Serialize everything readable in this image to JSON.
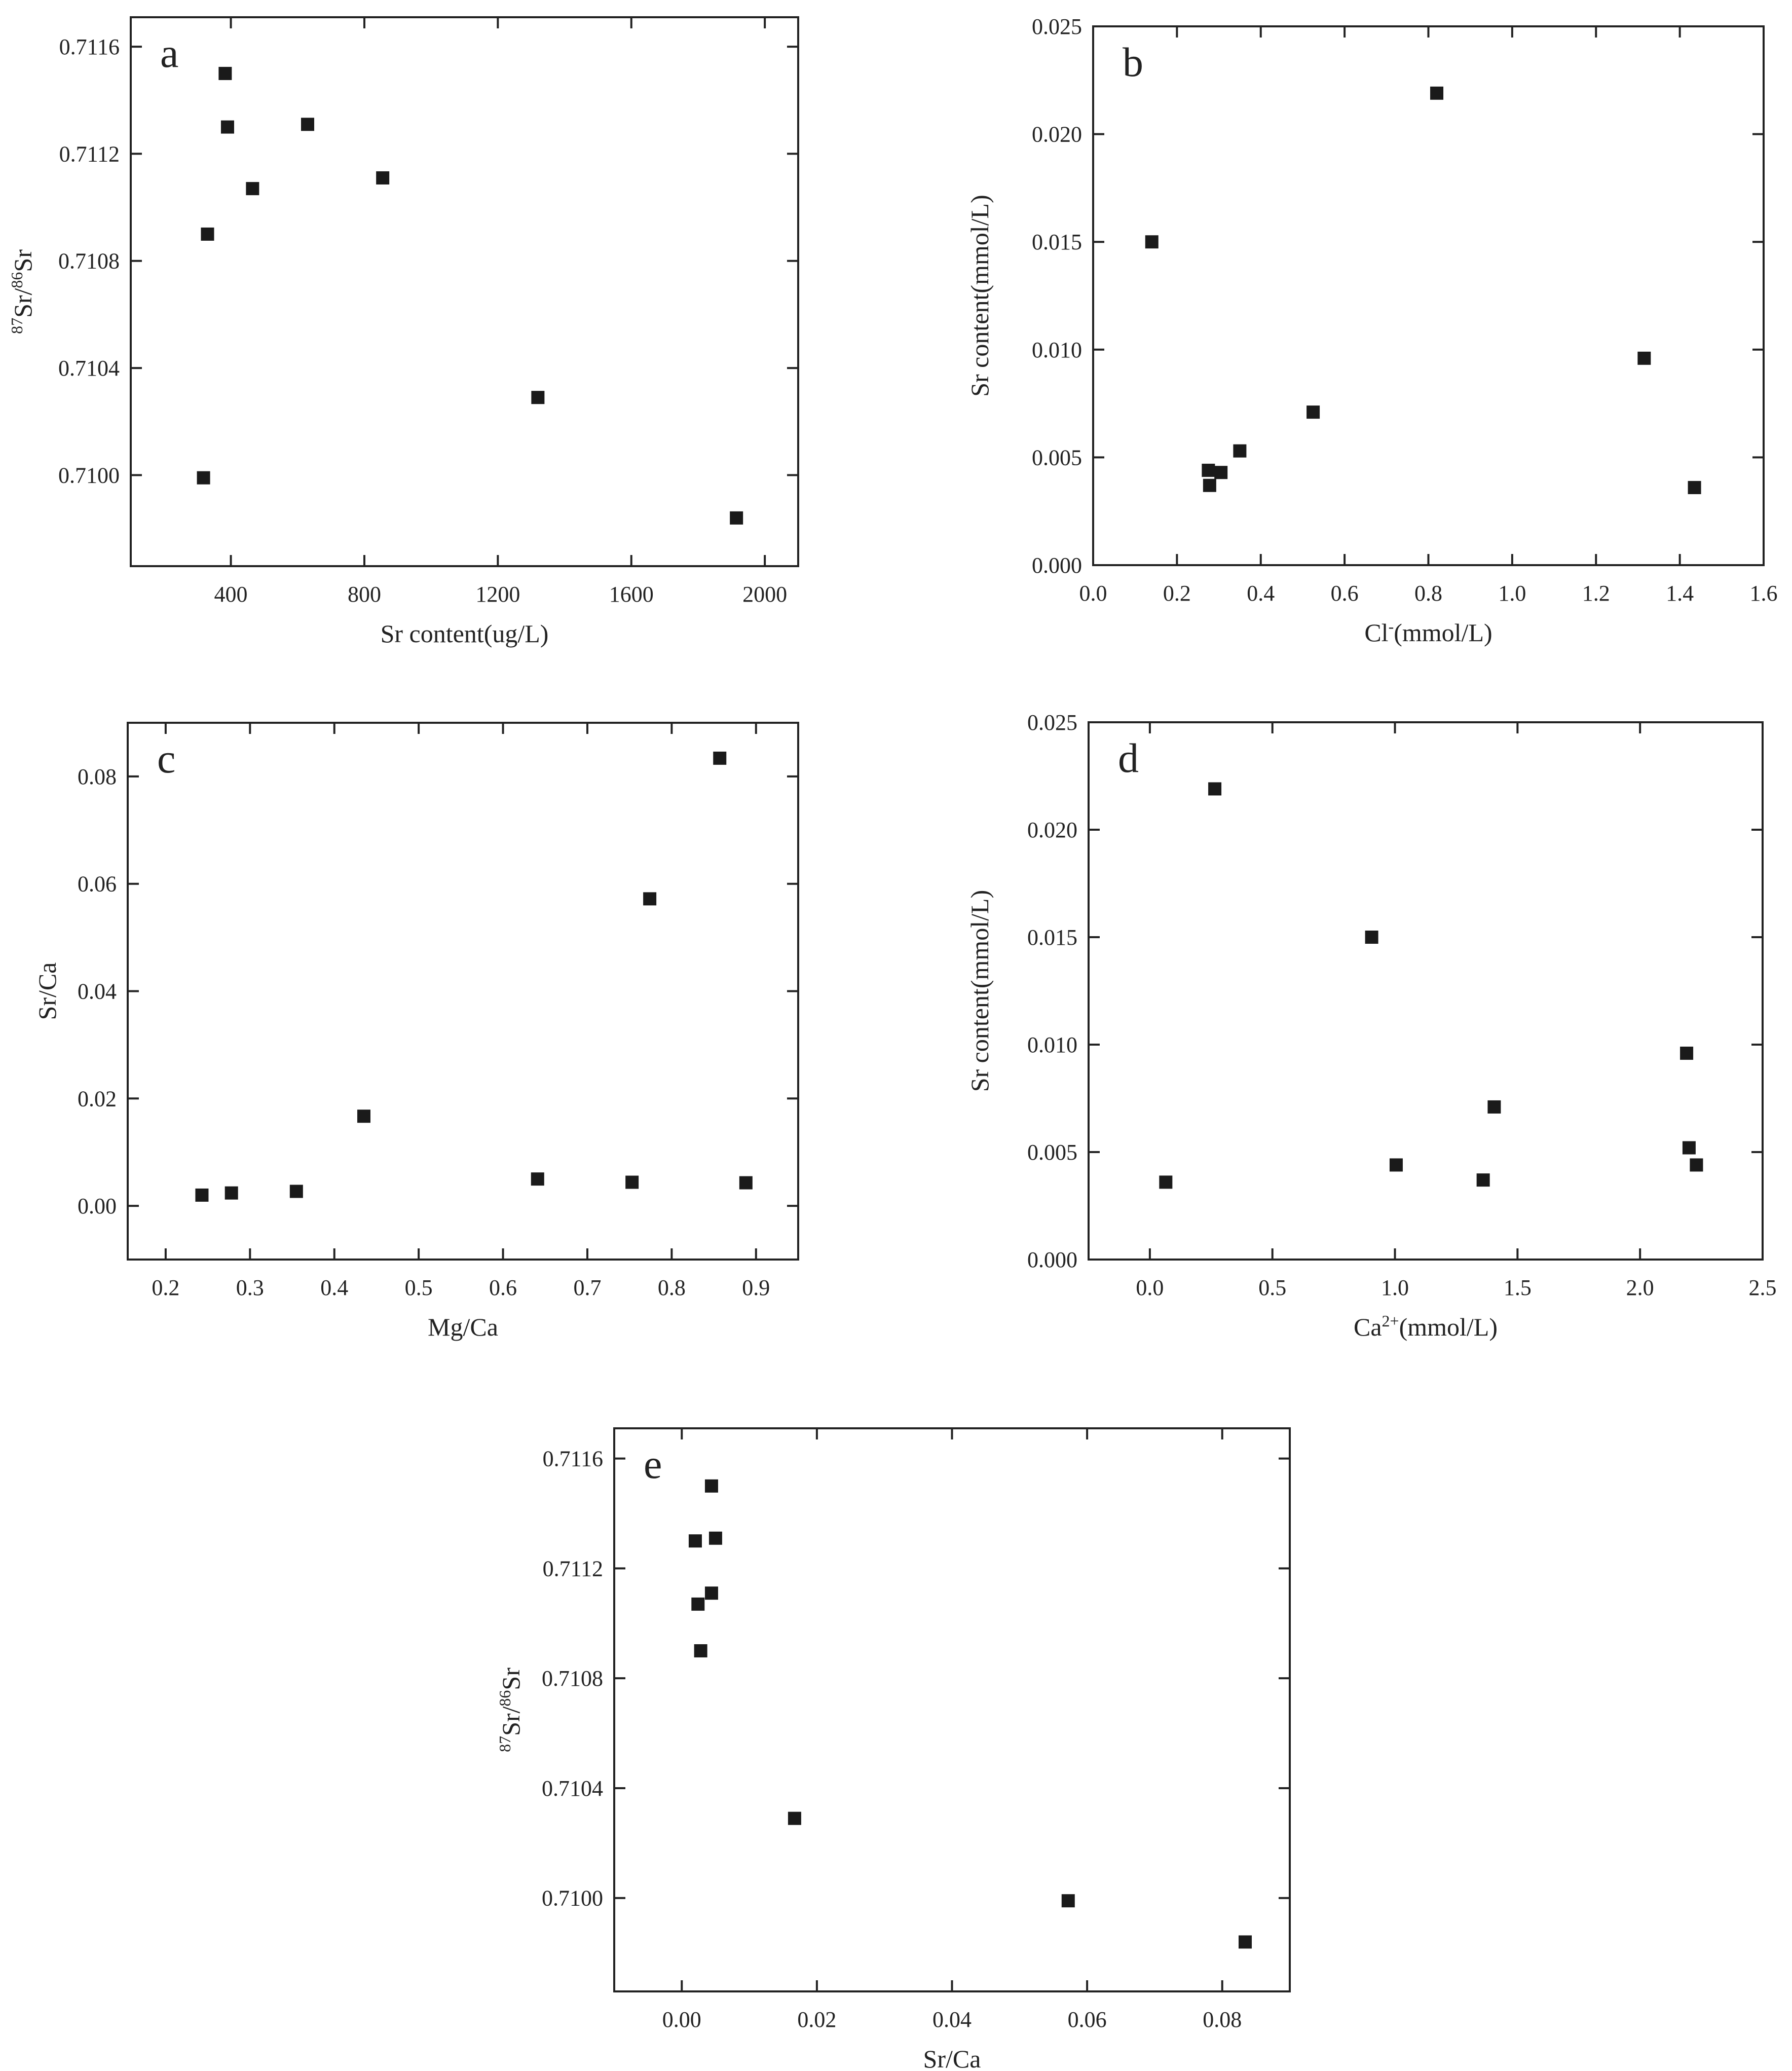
{
  "chart_data": [
    {
      "panel": "a",
      "type": "scatter",
      "xlabel": "Sr content(ug/L)",
      "ylabel": {
        "sup1": "87",
        "base1": "Sr/",
        "sup2": "86",
        "base2": "Sr"
      },
      "xlim": [
        100,
        2100
      ],
      "ylim": [
        0.70966,
        0.71171
      ],
      "xticks": [
        400,
        800,
        1200,
        1600,
        2000
      ],
      "xtick_labels": [
        "400",
        "800",
        "1200",
        "1600",
        "2000"
      ],
      "yticks": [
        0.71,
        0.7104,
        0.7108,
        0.7112,
        0.7116
      ],
      "ytick_labels": [
        "0.7100",
        "0.7104",
        "0.7108",
        "0.7112",
        "0.7116"
      ],
      "points": [
        {
          "x": 318,
          "y": 0.70999
        },
        {
          "x": 330,
          "y": 0.7109
        },
        {
          "x": 383,
          "y": 0.7115
        },
        {
          "x": 390,
          "y": 0.7113
        },
        {
          "x": 465,
          "y": 0.71107
        },
        {
          "x": 630,
          "y": 0.71131
        },
        {
          "x": 855,
          "y": 0.71111
        },
        {
          "x": 1320,
          "y": 0.71029
        },
        {
          "x": 1915,
          "y": 0.70984
        }
      ]
    },
    {
      "panel": "b",
      "type": "scatter",
      "xlabel": {
        "base": "Cl",
        "sup": "-",
        "rest": "(mmol/L)"
      },
      "ylabel": "Sr content(mmol/L)",
      "xlim": [
        0,
        1.6
      ],
      "ylim": [
        0,
        0.025
      ],
      "xticks": [
        0,
        0.2,
        0.4,
        0.6,
        0.8,
        1.0,
        1.2,
        1.4,
        1.6
      ],
      "xtick_labels": [
        "0.0",
        "0.2",
        "0.4",
        "0.6",
        "0.8",
        "1.0",
        "1.2",
        "1.4",
        "1.6"
      ],
      "yticks": [
        0,
        0.005,
        0.01,
        0.015,
        0.02,
        0.025
      ],
      "ytick_labels": [
        "0.000",
        "0.005",
        "0.010",
        "0.015",
        "0.020",
        "0.025"
      ],
      "points": [
        {
          "x": 0.14,
          "y": 0.015
        },
        {
          "x": 0.275,
          "y": 0.0044
        },
        {
          "x": 0.278,
          "y": 0.0037
        },
        {
          "x": 0.305,
          "y": 0.0043
        },
        {
          "x": 0.35,
          "y": 0.0053
        },
        {
          "x": 0.525,
          "y": 0.0071
        },
        {
          "x": 0.82,
          "y": 0.0219
        },
        {
          "x": 1.315,
          "y": 0.0096
        },
        {
          "x": 1.435,
          "y": 0.0036
        }
      ]
    },
    {
      "panel": "c",
      "type": "scatter",
      "xlabel": "Mg/Ca",
      "ylabel": "Sr/Ca",
      "xlim": [
        0.155,
        0.95
      ],
      "ylim": [
        -0.01,
        0.09
      ],
      "xticks": [
        0.2,
        0.3,
        0.4,
        0.5,
        0.6,
        0.7,
        0.8,
        0.9
      ],
      "xtick_labels": [
        "0.2",
        "0.3",
        "0.4",
        "0.5",
        "0.6",
        "0.7",
        "0.8",
        "0.9"
      ],
      "yticks": [
        0,
        0.02,
        0.04,
        0.06,
        0.08
      ],
      "ytick_labels": [
        "0.00",
        "0.02",
        "0.04",
        "0.06",
        "0.08"
      ],
      "points": [
        {
          "x": 0.243,
          "y": 0.002
        },
        {
          "x": 0.278,
          "y": 0.0024
        },
        {
          "x": 0.355,
          "y": 0.0027
        },
        {
          "x": 0.435,
          "y": 0.0167
        },
        {
          "x": 0.641,
          "y": 0.005
        },
        {
          "x": 0.753,
          "y": 0.0044
        },
        {
          "x": 0.774,
          "y": 0.0572
        },
        {
          "x": 0.857,
          "y": 0.0834
        },
        {
          "x": 0.888,
          "y": 0.0043
        }
      ]
    },
    {
      "panel": "d",
      "type": "scatter",
      "xlabel": {
        "base": "Ca",
        "sup": "2+",
        "rest": "(mmol/L)"
      },
      "ylabel": "Sr content(mmol/L)",
      "xlim": [
        -0.25,
        2.5
      ],
      "ylim": [
        0,
        0.025
      ],
      "xticks": [
        0,
        0.5,
        1.0,
        1.5,
        2.0,
        2.5
      ],
      "xtick_labels": [
        "0.0",
        "0.5",
        "1.0",
        "1.5",
        "2.0",
        "2.5"
      ],
      "yticks": [
        0,
        0.005,
        0.01,
        0.015,
        0.02,
        0.025
      ],
      "ytick_labels": [
        "0.000",
        "0.005",
        "0.010",
        "0.015",
        "0.020",
        "0.025"
      ],
      "points": [
        {
          "x": 0.065,
          "y": 0.0036
        },
        {
          "x": 0.265,
          "y": 0.0219
        },
        {
          "x": 0.905,
          "y": 0.015
        },
        {
          "x": 1.005,
          "y": 0.0044
        },
        {
          "x": 1.36,
          "y": 0.0037
        },
        {
          "x": 1.405,
          "y": 0.0071
        },
        {
          "x": 2.19,
          "y": 0.0096
        },
        {
          "x": 2.2,
          "y": 0.0052
        },
        {
          "x": 2.23,
          "y": 0.0044
        }
      ]
    },
    {
      "panel": "e",
      "type": "scatter",
      "xlabel": "Sr/Ca",
      "ylabel": {
        "sup1": "87",
        "base1": "Sr/",
        "sup2": "86",
        "base2": "Sr"
      },
      "xlim": [
        -0.01,
        0.09
      ],
      "ylim": [
        0.70966,
        0.71171
      ],
      "xticks": [
        0,
        0.02,
        0.04,
        0.06,
        0.08
      ],
      "xtick_labels": [
        "0.00",
        "0.02",
        "0.04",
        "0.06",
        "0.08"
      ],
      "yticks": [
        0.71,
        0.7104,
        0.7108,
        0.7112,
        0.7116
      ],
      "ytick_labels": [
        "0.7100",
        "0.7104",
        "0.7108",
        "0.7112",
        "0.7116"
      ],
      "points": [
        {
          "x": 0.002,
          "y": 0.7113
        },
        {
          "x": 0.0024,
          "y": 0.71107
        },
        {
          "x": 0.0028,
          "y": 0.7109
        },
        {
          "x": 0.0044,
          "y": 0.7115
        },
        {
          "x": 0.0044,
          "y": 0.71111
        },
        {
          "x": 0.005,
          "y": 0.71131
        },
        {
          "x": 0.0167,
          "y": 0.71029
        },
        {
          "x": 0.0572,
          "y": 0.70999
        },
        {
          "x": 0.0834,
          "y": 0.70984
        }
      ]
    }
  ]
}
